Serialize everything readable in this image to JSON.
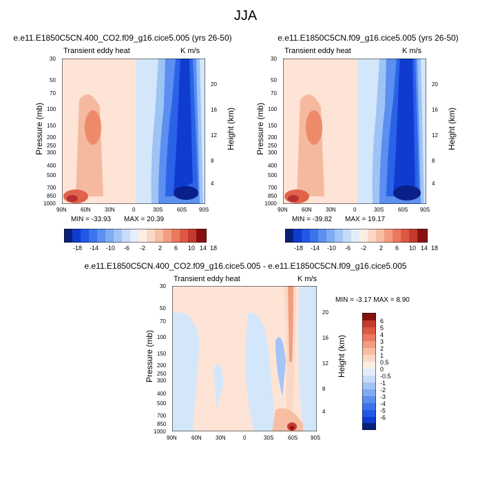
{
  "title": "JJA",
  "chart_data": [
    {
      "type": "heatmap",
      "title": "e.e11.E1850C5CN.400_CO2.f09_g16.cice5.005 (yrs 26-50)",
      "left_label": "Transient eddy heat",
      "right_label": "K m/s",
      "ylabel": "Pressure (mb)",
      "ylabel_right": "Height (km)",
      "x_ticks": [
        "90N",
        "60N",
        "30N",
        "0",
        "30S",
        "60S",
        "90S"
      ],
      "y_ticks": [
        "30",
        "50",
        "70",
        "100",
        "150",
        "200",
        "250",
        "300",
        "400",
        "500",
        "700",
        "850",
        "1000"
      ],
      "y_ticks_right": [
        "20",
        "16",
        "12",
        "8",
        "4"
      ],
      "min_text": "MIN = -33.93",
      "max_text": "MAX = 20.39",
      "colorbar_labels": [
        "-18",
        "-14",
        "-10",
        "-6",
        "-2",
        "2",
        "6",
        "10",
        "14",
        "18"
      ]
    },
    {
      "type": "heatmap",
      "title": "e.e11.E1850C5CN.f09_g16.cice5.005 (yrs 26-50)",
      "left_label": "Transient eddy heat",
      "right_label": "K m/s",
      "ylabel": "Pressure (mb)",
      "ylabel_right": "Height (km)",
      "x_ticks": [
        "90N",
        "60N",
        "30N",
        "0",
        "30S",
        "60S",
        "90S"
      ],
      "y_ticks": [
        "30",
        "50",
        "70",
        "100",
        "150",
        "200",
        "250",
        "300",
        "400",
        "500",
        "700",
        "850",
        "1000"
      ],
      "y_ticks_right": [
        "20",
        "16",
        "12",
        "8",
        "4"
      ],
      "min_text": "MIN = -39.82",
      "max_text": "MAX = 19.17",
      "colorbar_labels": [
        "-18",
        "-14",
        "-10",
        "-6",
        "-2",
        "2",
        "6",
        "10",
        "14",
        "18"
      ]
    },
    {
      "type": "heatmap",
      "title": "e.e11.E1850C5CN.400_CO2.f09_g16.cice5.005 - e.e11.E1850C5CN.f09_g16.cice5.005",
      "left_label": "Transient eddy heat",
      "right_label": "K m/s",
      "ylabel": "Pressure (mb)",
      "ylabel_right": "Height (km)",
      "x_ticks": [
        "90N",
        "60N",
        "30N",
        "0",
        "30S",
        "60S",
        "90S"
      ],
      "y_ticks": [
        "30",
        "50",
        "70",
        "100",
        "150",
        "200",
        "250",
        "300",
        "400",
        "500",
        "700",
        "850",
        "1000"
      ],
      "y_ticks_right": [
        "20",
        "16",
        "12",
        "8",
        "4"
      ],
      "minmax_text": "MIN = -3.17  MAX =  8.90",
      "colorbar_labels": [
        "6",
        "5",
        "4",
        "3",
        "2",
        "1",
        "0.5",
        "0",
        "-0.5",
        "-1",
        "-2",
        "-3",
        "-4",
        "-5",
        "-6"
      ]
    }
  ]
}
